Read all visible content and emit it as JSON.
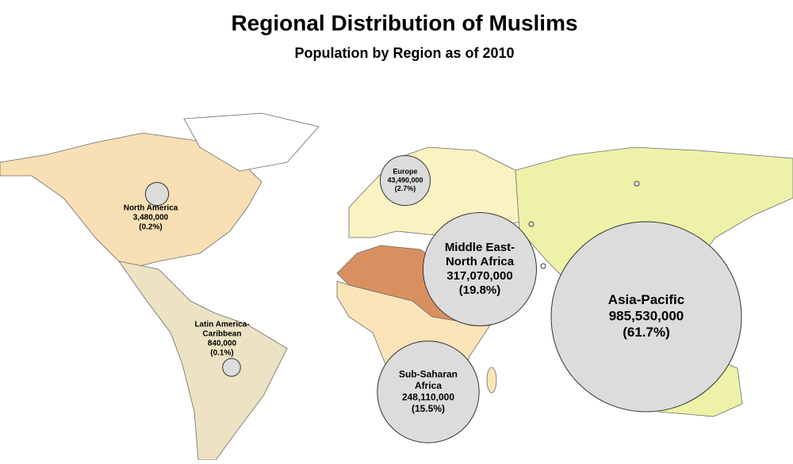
{
  "title": "Regional Distribution of Muslims",
  "subtitle": "Population by Region as of 2010",
  "regions": [
    {
      "name_lines": [
        "Asia-Pacific"
      ],
      "population": {
        "value": 985530000,
        "label": "985,530,000"
      },
      "share": {
        "value": 61.7,
        "label": "(61.7%)"
      }
    },
    {
      "name_lines": [
        "Middle East-",
        "North Africa"
      ],
      "population": {
        "value": 317070000,
        "label": "317,070,000"
      },
      "share": {
        "value": 19.8,
        "label": "(19.8%)"
      }
    },
    {
      "name_lines": [
        "Sub-Saharan",
        "Africa"
      ],
      "population": {
        "value": 248110000,
        "label": "248,110,000"
      },
      "share": {
        "value": 15.5,
        "label": "(15.5%)"
      }
    },
    {
      "name_lines": [
        "Europe"
      ],
      "population": {
        "value": 43490000,
        "label": "43,490,000"
      },
      "share": {
        "value": 2.7,
        "label": "(2.7%)"
      }
    },
    {
      "name_lines": [
        "North America"
      ],
      "population": {
        "value": 3480000,
        "label": "3,480,000"
      },
      "share": {
        "value": 0.2,
        "label": "(0.2%)"
      }
    },
    {
      "name_lines": [
        "Latin America-",
        "Caribbean"
      ],
      "population": {
        "value": 840000,
        "label": "840,000"
      },
      "share": {
        "value": 0.1,
        "label": "(0.1%)"
      }
    }
  ]
}
